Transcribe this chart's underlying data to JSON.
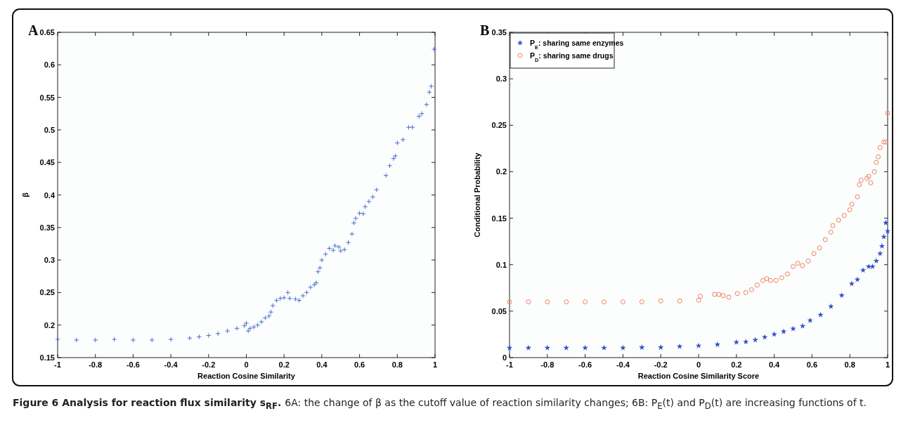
{
  "chart_data": [
    {
      "type": "scatter",
      "title": "A",
      "xlabel": "Reaction Cosine Similarity",
      "ylabel": "β",
      "xlim": [
        -1,
        1
      ],
      "ylim": [
        0.15,
        0.65
      ],
      "xticks": [
        -1,
        -0.8,
        -0.6,
        -0.4,
        -0.2,
        0,
        0.2,
        0.4,
        0.6,
        0.8,
        1
      ],
      "yticks": [
        0.15,
        0.2,
        0.25,
        0.3,
        0.35,
        0.4,
        0.45,
        0.5,
        0.55,
        0.6,
        0.65
      ],
      "grid": false,
      "legend": false,
      "annotations": [
        "Figure 6 Analysis for reaction flux similarity s$_{RF}$.",
        "6A: the change of β as the cutoff value of reaction similarity changes; 6B: P$_{E}$(t) and P$_{D}$(t) are increasing functions of t."
      ],
      "series": [
        {
          "color": "#4a6fd0",
          "marker": "cross",
          "x": [
            -1,
            -0.9,
            -0.8,
            -0.7,
            -0.6,
            -0.5,
            -0.4,
            -0.3,
            -0.25,
            -0.2,
            -0.15,
            -0.1,
            -0.05,
            -0.01,
            0,
            0.01,
            0.02,
            0.04,
            0.06,
            0.08,
            0.1,
            0.12,
            0.13,
            0.14,
            0.16,
            0.18,
            0.2,
            0.22,
            0.23,
            0.26,
            0.28,
            0.3,
            0.32,
            0.34,
            0.36,
            0.37,
            0.38,
            0.39,
            0.4,
            0.42,
            0.44,
            0.46,
            0.47,
            0.49,
            0.5,
            0.52,
            0.54,
            0.56,
            0.57,
            0.58,
            0.6,
            0.62,
            0.63,
            0.65,
            0.67,
            0.69,
            0.74,
            0.76,
            0.78,
            0.79,
            0.8,
            0.83,
            0.86,
            0.88,
            0.915,
            0.93,
            0.955,
            0.97,
            0.98,
            0.995
          ],
          "values": [
            0.178,
            0.177,
            0.177,
            0.178,
            0.177,
            0.177,
            0.178,
            0.18,
            0.182,
            0.184,
            0.187,
            0.191,
            0.195,
            0.199,
            0.203,
            0.191,
            0.195,
            0.197,
            0.2,
            0.205,
            0.211,
            0.214,
            0.22,
            0.23,
            0.238,
            0.241,
            0.242,
            0.25,
            0.241,
            0.24,
            0.238,
            0.245,
            0.25,
            0.258,
            0.262,
            0.265,
            0.282,
            0.288,
            0.3,
            0.309,
            0.318,
            0.315,
            0.322,
            0.32,
            0.314,
            0.316,
            0.327,
            0.34,
            0.357,
            0.364,
            0.372,
            0.371,
            0.382,
            0.39,
            0.397,
            0.408,
            0.43,
            0.445,
            0.456,
            0.46,
            0.48,
            0.485,
            0.504,
            0.504,
            0.521,
            0.525,
            0.539,
            0.558,
            0.567,
            0.624
          ]
        }
      ]
    },
    {
      "type": "scatter",
      "title": "B",
      "xlabel": "Reaction Cosine Similarity Score",
      "ylabel": "Conditional Probability",
      "xlim": [
        -1,
        1
      ],
      "ylim": [
        0,
        0.35
      ],
      "xticks": [
        -1,
        -0.8,
        -0.6,
        -0.4,
        -0.2,
        0,
        0.2,
        0.4,
        0.6,
        0.8,
        1
      ],
      "yticks": [
        0,
        0.05,
        0.1,
        0.15,
        0.2,
        0.25,
        0.3,
        0.35
      ],
      "grid": false,
      "legend": "top left",
      "series": [
        {
          "name": "P$_{E}$: sharing same enzymes",
          "color": "#3050c8",
          "marker": "star",
          "x": [
            -1,
            -0.9,
            -0.8,
            -0.7,
            -0.6,
            -0.5,
            -0.4,
            -0.3,
            -0.2,
            -0.1,
            0,
            0.1,
            0.2,
            0.25,
            0.3,
            0.35,
            0.4,
            0.45,
            0.5,
            0.55,
            0.59,
            0.645,
            0.7,
            0.757,
            0.81,
            0.84,
            0.87,
            0.9,
            0.92,
            0.94,
            0.96,
            0.97,
            0.98,
            0.99,
            1
          ],
          "values": [
            0.0105,
            0.0105,
            0.0105,
            0.0105,
            0.0105,
            0.0105,
            0.0105,
            0.011,
            0.011,
            0.012,
            0.0128,
            0.014,
            0.0165,
            0.017,
            0.019,
            0.022,
            0.025,
            0.028,
            0.031,
            0.034,
            0.04,
            0.046,
            0.055,
            0.067,
            0.0795,
            0.084,
            0.094,
            0.098,
            0.098,
            0.104,
            0.112,
            0.12,
            0.13,
            0.145,
            0.136
          ]
        },
        {
          "name": "P$_{D}$: sharing same drugs",
          "color": "#f08060",
          "marker": "circle",
          "x": [
            -1,
            -0.9,
            -0.8,
            -0.7,
            -0.6,
            -0.5,
            -0.4,
            -0.3,
            -0.2,
            -0.1,
            0,
            0.01,
            0.085,
            0.107,
            0.13,
            0.16,
            0.205,
            0.25,
            0.28,
            0.31,
            0.34,
            0.36,
            0.38,
            0.41,
            0.44,
            0.47,
            0.5,
            0.525,
            0.55,
            0.58,
            0.61,
            0.64,
            0.67,
            0.7,
            0.71,
            0.74,
            0.77,
            0.8,
            0.81,
            0.84,
            0.85,
            0.86,
            0.89,
            0.9,
            0.91,
            0.93,
            0.94,
            0.95,
            0.96,
            0.98,
            0.99,
            1
          ],
          "values": [
            0.06,
            0.06,
            0.06,
            0.06,
            0.06,
            0.06,
            0.06,
            0.06,
            0.061,
            0.061,
            0.0618,
            0.066,
            0.068,
            0.068,
            0.0667,
            0.065,
            0.069,
            0.07,
            0.073,
            0.078,
            0.083,
            0.085,
            0.083,
            0.083,
            0.086,
            0.09,
            0.098,
            0.1015,
            0.099,
            0.104,
            0.112,
            0.118,
            0.127,
            0.135,
            0.142,
            0.148,
            0.153,
            0.159,
            0.165,
            0.173,
            0.186,
            0.191,
            0.193,
            0.195,
            0.188,
            0.2,
            0.21,
            0.216,
            0.226,
            0.232,
            0.232,
            0.263
          ]
        }
      ]
    }
  ]
}
